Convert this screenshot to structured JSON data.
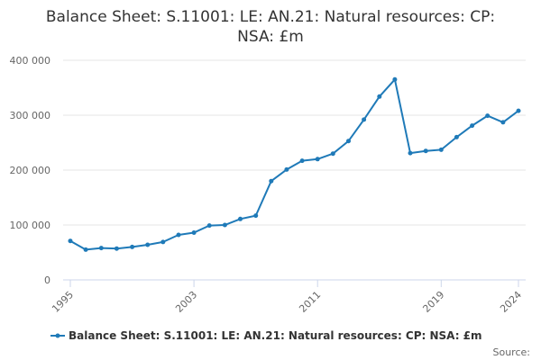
{
  "chart_data": {
    "type": "line",
    "title_lines": [
      "Balance Sheet: S.11001: LE: AN.21: Natural resources: CP:",
      "NSA: £m"
    ],
    "xlabel": "",
    "ylabel": "",
    "x": [
      1995,
      1996,
      1997,
      1998,
      1999,
      2000,
      2001,
      2002,
      2003,
      2004,
      2005,
      2006,
      2007,
      2008,
      2009,
      2010,
      2011,
      2012,
      2013,
      2014,
      2015,
      2016,
      2017,
      2018,
      2019,
      2020,
      2021,
      2022,
      2023,
      2024
    ],
    "x_tick_labels": [
      "1995",
      "2003",
      "2011",
      "2019",
      "2024"
    ],
    "xlim": [
      1995,
      2024
    ],
    "ylim": [
      0,
      400000
    ],
    "y_ticks": [
      0,
      100000,
      200000,
      300000,
      400000
    ],
    "y_tick_labels": [
      "0",
      "100 000",
      "200 000",
      "300 000",
      "400 000"
    ],
    "grid": true,
    "legend_position": "bottom",
    "series": [
      {
        "name": "Balance Sheet: S.11001: LE: AN.21: Natural resources: CP: NSA: £m",
        "color": "#1f7ab8",
        "values": [
          71000,
          55000,
          58000,
          57000,
          60000,
          64000,
          69000,
          82000,
          86000,
          99000,
          100000,
          111000,
          117000,
          180000,
          201000,
          217000,
          220000,
          230000,
          253000,
          292000,
          334000,
          365000,
          231000,
          235000,
          237000,
          260000,
          281000,
          299000,
          287000,
          308000
        ]
      }
    ],
    "source_label": "Source:"
  }
}
